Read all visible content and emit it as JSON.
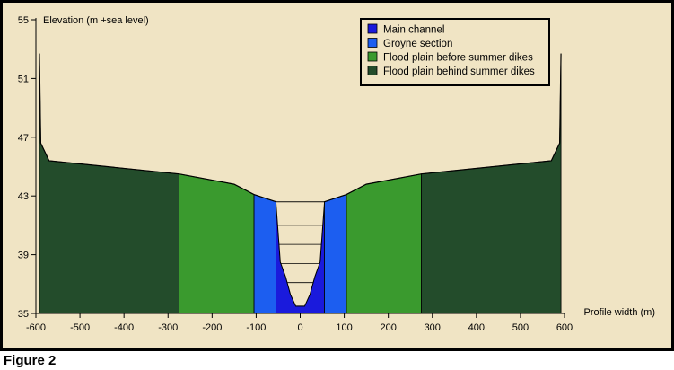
{
  "figure_caption": "Figure 2",
  "chart_data": {
    "type": "area",
    "title": "",
    "ylabel": "Elevation (m +sea level)",
    "xlabel": "Profile width (m)",
    "xlim": [
      -600,
      600
    ],
    "ylim": [
      35,
      55
    ],
    "x_ticks": [
      -600,
      -500,
      -400,
      -300,
      -200,
      -100,
      0,
      100,
      200,
      300,
      400,
      500,
      600
    ],
    "x_tick_labels": [
      "-600",
      "-500",
      "-400",
      "-300",
      "-200",
      "-100",
      "0",
      "100",
      "200",
      "300",
      "400",
      "500",
      "600"
    ],
    "y_ticks": [
      35,
      39,
      43,
      47,
      51,
      55
    ],
    "y_tick_labels": [
      "35",
      "39",
      "43",
      "47",
      "51",
      "55"
    ],
    "legend_position": "top-right",
    "background_color": "#f0e4c4",
    "outer_background_color": "#000000",
    "terrain_profile": [
      {
        "x": -592,
        "y": 52.7
      },
      {
        "x": -589,
        "y": 46.6
      },
      {
        "x": -570,
        "y": 45.4
      },
      {
        "x": -275,
        "y": 44.5
      },
      {
        "x": -150,
        "y": 43.8
      },
      {
        "x": -105,
        "y": 43.1
      },
      {
        "x": -55,
        "y": 42.6
      },
      {
        "x": -45,
        "y": 38.5
      },
      {
        "x": -33,
        "y": 37.5
      },
      {
        "x": -22,
        "y": 36.3
      },
      {
        "x": -10,
        "y": 35.5
      },
      {
        "x": 10,
        "y": 35.5
      },
      {
        "x": 22,
        "y": 36.3
      },
      {
        "x": 33,
        "y": 37.5
      },
      {
        "x": 45,
        "y": 38.5
      },
      {
        "x": 55,
        "y": 42.6
      },
      {
        "x": 105,
        "y": 43.1
      },
      {
        "x": 150,
        "y": 43.8
      },
      {
        "x": 275,
        "y": 44.5
      },
      {
        "x": 570,
        "y": 45.4
      },
      {
        "x": 589,
        "y": 46.6
      },
      {
        "x": 592,
        "y": 52.7
      }
    ],
    "zones": [
      {
        "name": "Main channel",
        "color": "#1a1adc",
        "x_range": [
          -55,
          55
        ]
      },
      {
        "name": "Groyne section",
        "color": "#1c5ef0",
        "x_ranges": [
          [
            -105,
            -55
          ],
          [
            55,
            105
          ]
        ]
      },
      {
        "name": "Flood plain before summer dikes",
        "color": "#3a9a2e",
        "x_ranges": [
          [
            -275,
            -105
          ],
          [
            105,
            275
          ]
        ]
      },
      {
        "name": "Flood plain behind summer dikes",
        "color": "#234c2b",
        "x_ranges": [
          [
            -592,
            -275
          ],
          [
            275,
            592
          ]
        ]
      }
    ],
    "water_levels": [
      42.6,
      41.0,
      39.7,
      38.4,
      37.1
    ],
    "legend": [
      {
        "label": "Main channel",
        "color": "#1a1adc"
      },
      {
        "label": "Groyne section",
        "color": "#1c5ef0"
      },
      {
        "label": "Flood plain before summer dikes",
        "color": "#3a9a2e"
      },
      {
        "label": "Flood plain behind summer dikes",
        "color": "#234c2b"
      }
    ]
  }
}
